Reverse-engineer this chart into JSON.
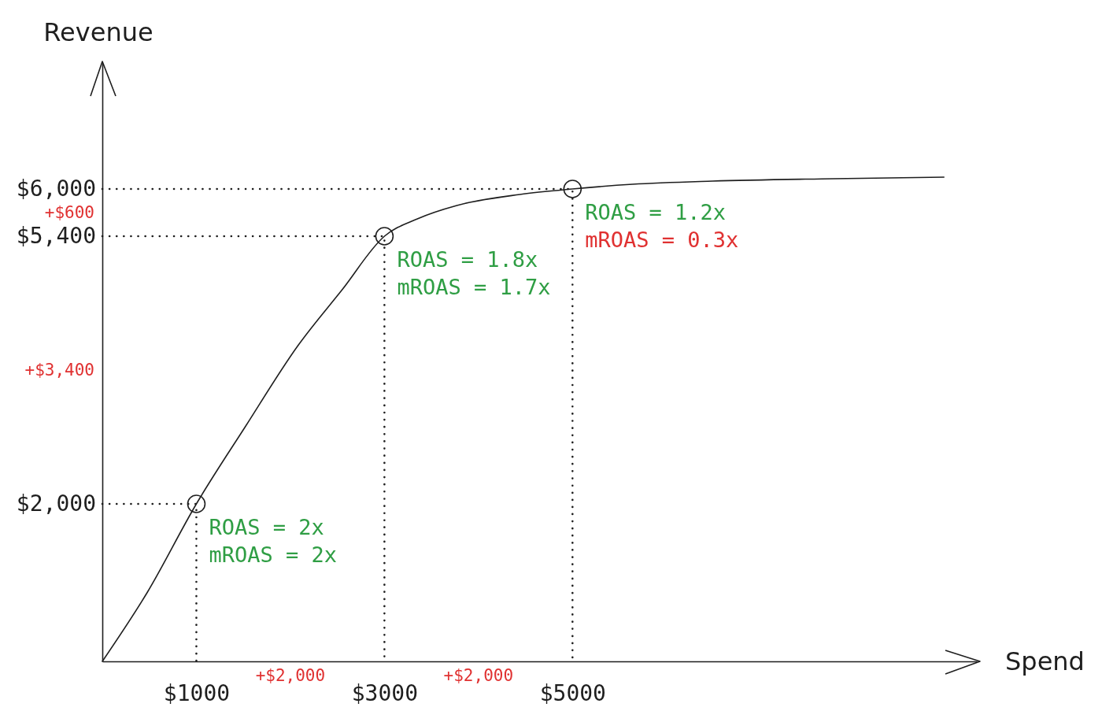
{
  "chart_data": {
    "type": "line",
    "xlabel": "Spend",
    "ylabel": "Revenue",
    "xlim": [
      0,
      9300
    ],
    "ylim": [
      0,
      7600
    ],
    "xticks": [
      {
        "value": 1000,
        "label": "$1000"
      },
      {
        "value": 3000,
        "label": "$3000"
      },
      {
        "value": 5000,
        "label": "$5000"
      }
    ],
    "yticks": [
      {
        "value": 2000,
        "label": "$2,000"
      },
      {
        "value": 5400,
        "label": "$5,400"
      },
      {
        "value": 6000,
        "label": "$6,000"
      }
    ],
    "series": [
      {
        "color": "#1e1e1e",
        "line_style": "solid",
        "x": [
          0,
          480,
          1000,
          1520,
          2080,
          2550,
          3000,
          3350,
          3770,
          4440,
          5000,
          5640,
          6490,
          7770,
          8950
        ],
        "values": [
          0,
          880,
          2000,
          2980,
          4010,
          4720,
          5400,
          5620,
          5790,
          5930,
          6000,
          6060,
          6100,
          6130,
          6150
        ]
      },
      {
        "color": "#1e1e1e",
        "line_style": "dotted",
        "x": [
          0,
          1000,
          1000
        ],
        "values": [
          2000,
          2000,
          0
        ]
      },
      {
        "color": "#1e1e1e",
        "line_style": "dotted",
        "x": [
          0,
          3000,
          3000
        ],
        "values": [
          5400,
          5400,
          0
        ]
      },
      {
        "color": "#1e1e1e",
        "line_style": "dotted",
        "x": [
          0,
          5000,
          5000
        ],
        "values": [
          6000,
          6000,
          0
        ]
      },
      {
        "type": "scatter",
        "color": "#1e1e1e",
        "marker": "circle",
        "x": [
          1000,
          3000,
          5000
        ],
        "values": [
          2000,
          5400,
          6000
        ]
      }
    ],
    "annotations": [
      {
        "text": "ROAS = 2x",
        "x": 1000,
        "y": 2000
      },
      {
        "text": "mROAS = 2x",
        "x": 1000,
        "y": 2000
      },
      {
        "text": "ROAS = 1.8x",
        "x": 3000,
        "y": 5400
      },
      {
        "text": "mROAS = 1.7x",
        "x": 3000,
        "y": 5400
      },
      {
        "text": "ROAS = 1.2x",
        "x": 5000,
        "y": 6000
      },
      {
        "text": "mROAS = 0.3x",
        "x": 5000,
        "y": 6000
      },
      "+$600",
      "+$3,400",
      "+$2,000",
      "+$2,000"
    ]
  }
}
